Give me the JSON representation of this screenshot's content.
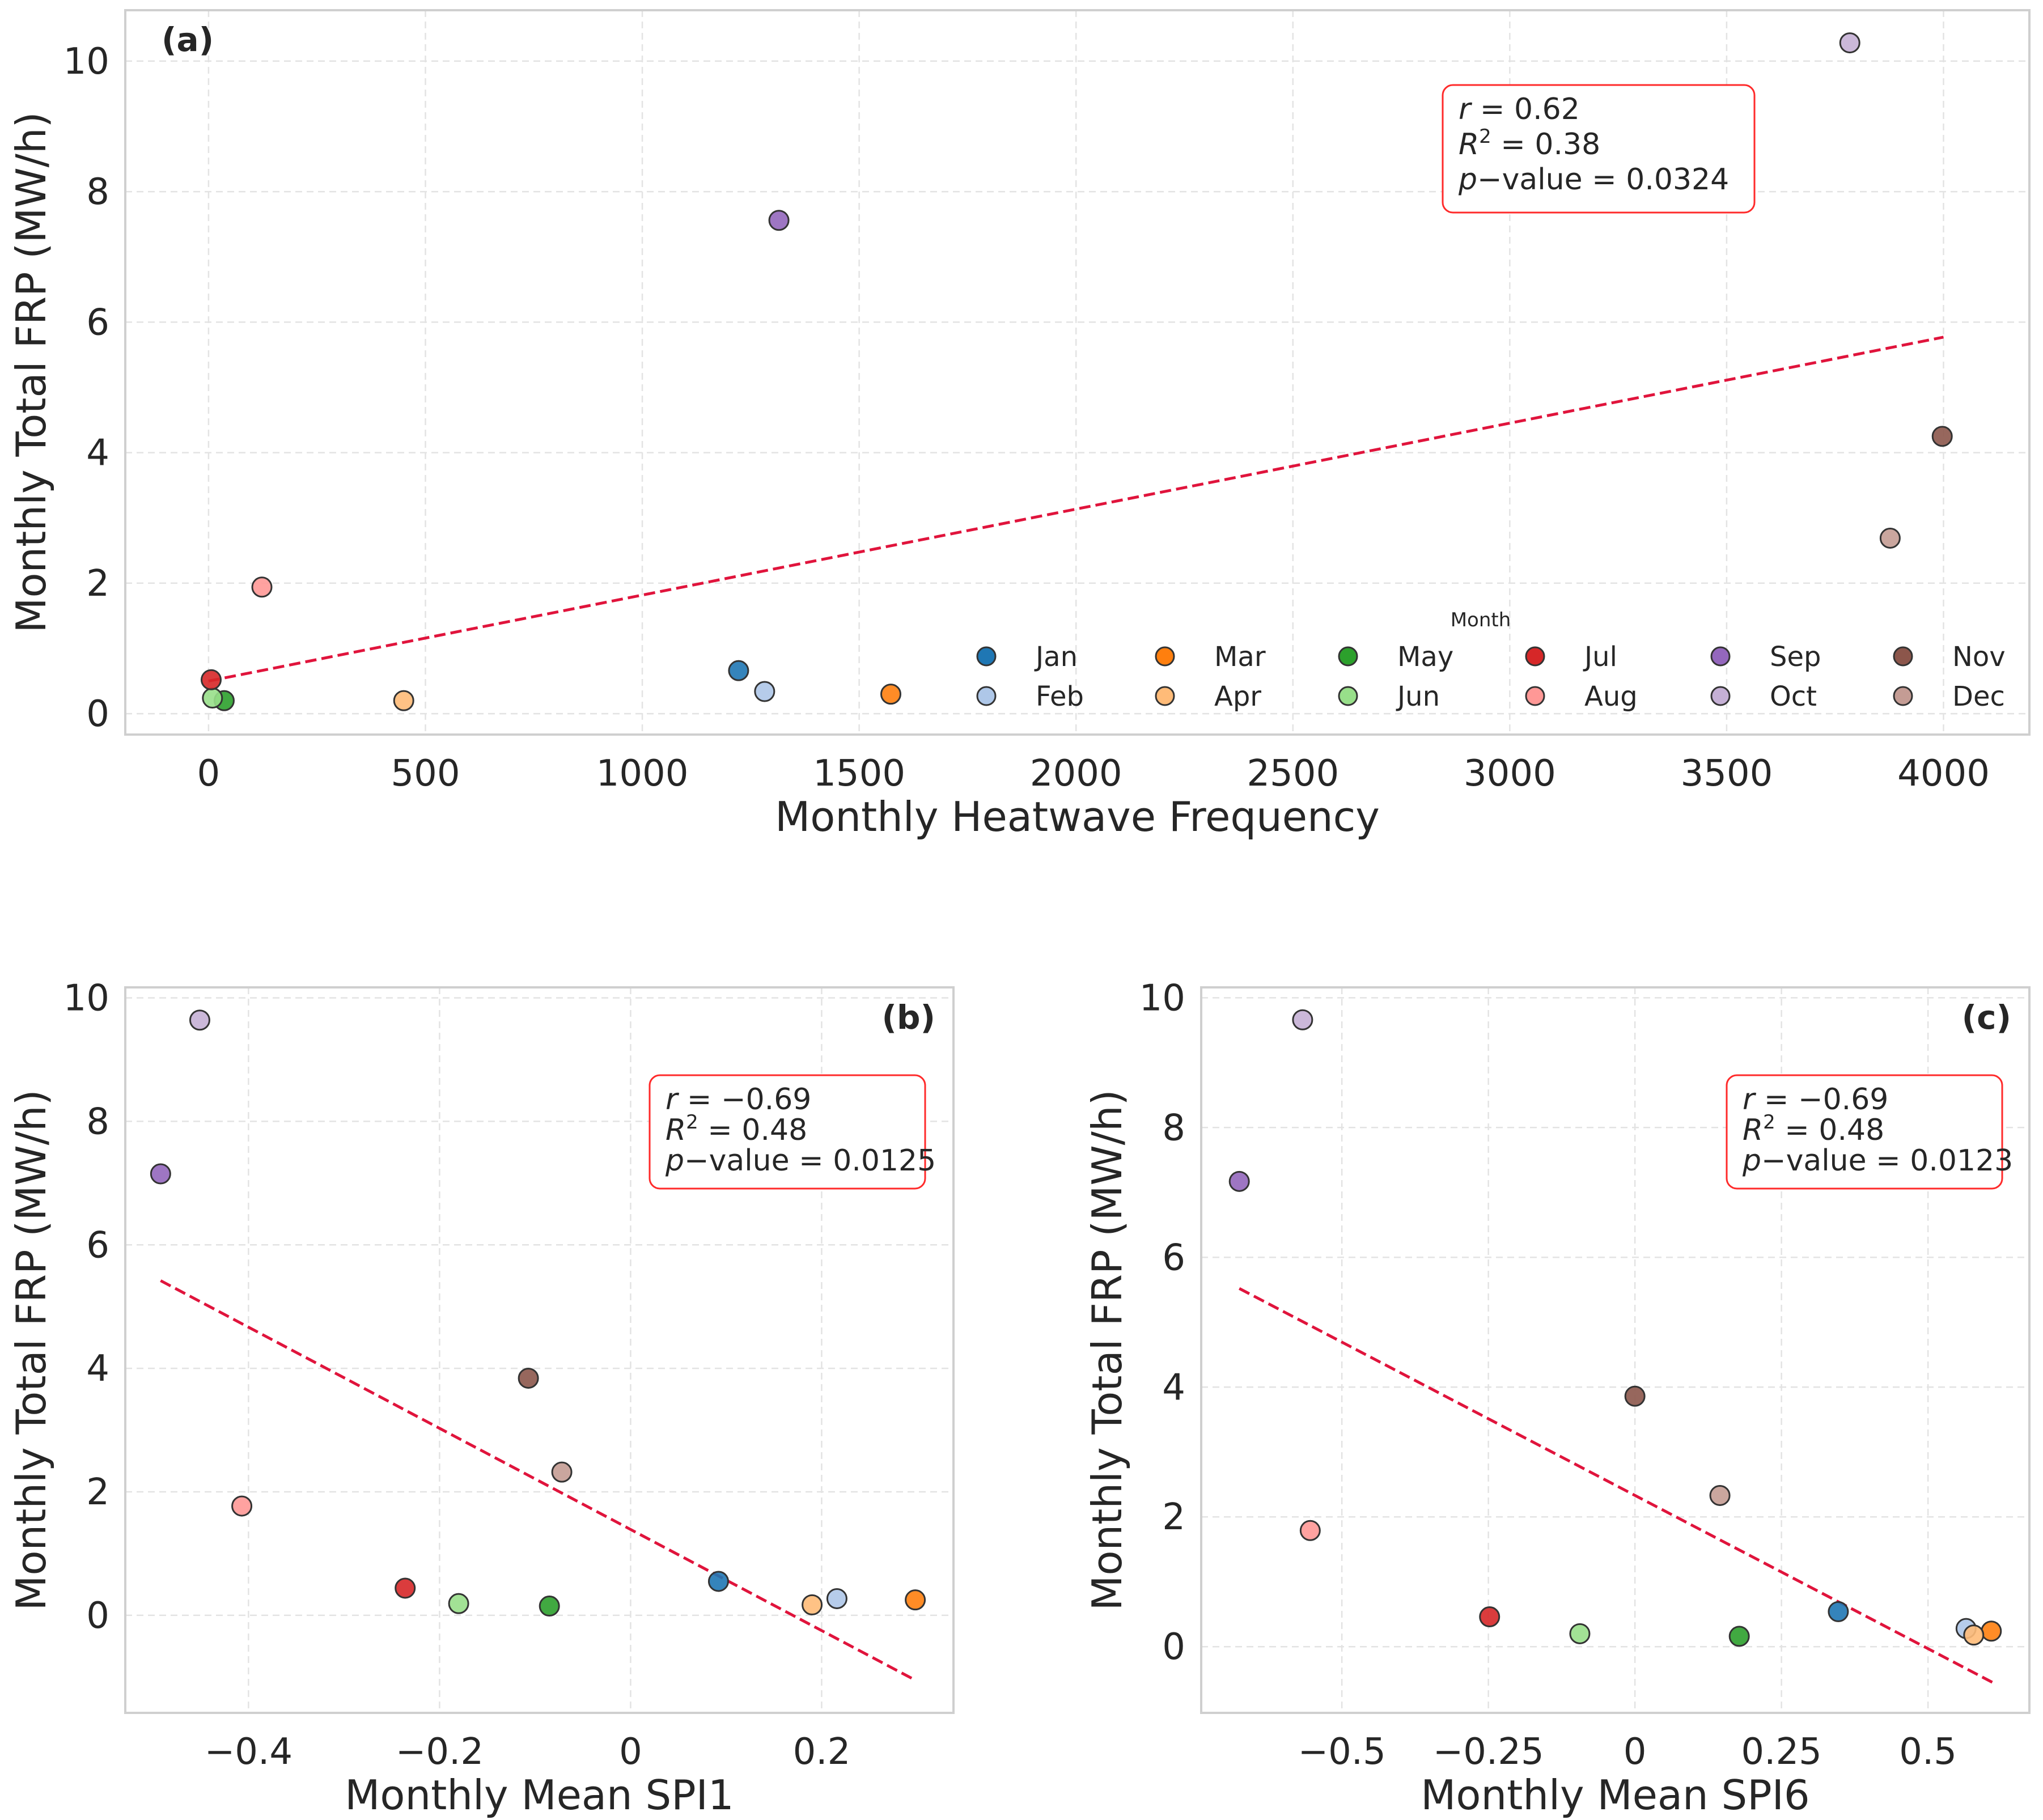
{
  "months": [
    "Jan",
    "Feb",
    "Mar",
    "Apr",
    "May",
    "Jun",
    "Jul",
    "Aug",
    "Sep",
    "Oct",
    "Nov",
    "Dec"
  ],
  "colors": [
    "#1f77b4",
    "#aec7e8",
    "#ff7f0e",
    "#ffbb78",
    "#2ca02c",
    "#98df8a",
    "#d62728",
    "#ff9896",
    "#9467bd",
    "#c5b0d5",
    "#8c564b",
    "#c49c94"
  ],
  "trend_color": "#e0143c",
  "legend": {
    "title": "Month",
    "placement": "lower-right"
  },
  "chart_data": [
    {
      "type": "scatter",
      "panel_label": "(a)",
      "xlabel": "Monthly Heatwave Frequency",
      "ylabel": "Monthly Total FRP (MW/h)",
      "xlim": [
        -192,
        4198
      ],
      "ylim": [
        -0.32,
        10.78
      ],
      "xticks": [
        0,
        500,
        1000,
        1500,
        2000,
        2500,
        3000,
        3500,
        4000
      ],
      "xticklabels": [
        "0",
        "500",
        "1000",
        "1500",
        "2000",
        "2500",
        "3000",
        "3500",
        "4000"
      ],
      "yticks": [
        0,
        2,
        4,
        6,
        8,
        10
      ],
      "yticklabels": [
        "0",
        "2",
        "4",
        "6",
        "8",
        "10"
      ],
      "x": [
        1222,
        1282,
        1573,
        450,
        36,
        9,
        6,
        123,
        1315,
        3784,
        3997,
        3877
      ],
      "y": [
        0.66,
        0.34,
        0.3,
        0.2,
        0.2,
        0.24,
        0.52,
        1.94,
        7.56,
        10.28,
        4.25,
        2.69
      ],
      "trend": {
        "x": [
          0,
          4000
        ],
        "y": [
          0.5,
          5.77
        ]
      },
      "stats": [
        {
          "var": "r",
          "sup": "",
          "val": " = 0.62"
        },
        {
          "var": "R",
          "sup": "2",
          "val": " = 0.38"
        },
        {
          "var": "p",
          "sup": "",
          "val": "−value = 0.0324"
        }
      ],
      "grid": true
    },
    {
      "type": "scatter",
      "panel_label": "(b)",
      "xlabel": "Monthly Mean SPI1",
      "ylabel": "Monthly Total FRP (MW/h)",
      "xlim": [
        -0.529,
        0.338
      ],
      "ylim": [
        -1.58,
        10.17
      ],
      "xticks": [
        -0.4,
        -0.2,
        0,
        0.2
      ],
      "xticklabels": [
        "−0.4",
        "−0.2",
        "0",
        "0.2"
      ],
      "yticks": [
        0,
        2,
        4,
        6,
        8,
        10
      ],
      "yticklabels": [
        "0",
        "2",
        "4",
        "6",
        "8",
        "10"
      ],
      "x": [
        0.092,
        0.216,
        0.298,
        0.19,
        -0.085,
        -0.18,
        -0.236,
        -0.407,
        -0.492,
        -0.451,
        -0.107,
        -0.072
      ],
      "y": [
        0.55,
        0.27,
        0.25,
        0.17,
        0.15,
        0.19,
        0.44,
        1.77,
        7.15,
        9.64,
        3.84,
        2.32
      ],
      "trend": {
        "x": [
          -0.492,
          0.298
        ],
        "y": [
          5.42,
          -1.05
        ]
      },
      "stats": [
        {
          "var": "r",
          "sup": "",
          "val": " = −0.69"
        },
        {
          "var": "R",
          "sup": "2",
          "val": " = 0.48"
        },
        {
          "var": "p",
          "sup": "",
          "val": "−value = 0.0125"
        }
      ],
      "grid": true
    },
    {
      "type": "scatter",
      "panel_label": "(c)",
      "xlabel": "Monthly Mean SPI6",
      "ylabel": "Monthly Total FRP (MW/h)",
      "xlim": [
        -0.74,
        0.673
      ],
      "ylim": [
        -1.02,
        10.16
      ],
      "xticks": [
        -0.5,
        -0.25,
        0,
        0.25,
        0.5
      ],
      "xticklabels": [
        "−0.5",
        "−0.25",
        "0",
        "0.25",
        "0.5"
      ],
      "yticks": [
        0,
        2,
        4,
        6,
        8,
        10
      ],
      "yticklabels": [
        "0",
        "2",
        "4",
        "6",
        "8",
        "10"
      ],
      "x": [
        0.347,
        0.565,
        0.608,
        0.578,
        0.178,
        -0.094,
        -0.248,
        -0.554,
        -0.675,
        -0.567,
        0.0,
        0.145
      ],
      "y": [
        0.54,
        0.28,
        0.24,
        0.18,
        0.16,
        0.2,
        0.46,
        1.79,
        7.17,
        9.66,
        3.86,
        2.33
      ],
      "trend": {
        "x": [
          -0.675,
          0.61
        ],
        "y": [
          5.52,
          -0.55
        ]
      },
      "stats": [
        {
          "var": "r",
          "sup": "",
          "val": " = −0.69"
        },
        {
          "var": "R",
          "sup": "2",
          "val": " = 0.48"
        },
        {
          "var": "p",
          "sup": "",
          "val": "−value = 0.0123"
        }
      ],
      "grid": true
    }
  ]
}
